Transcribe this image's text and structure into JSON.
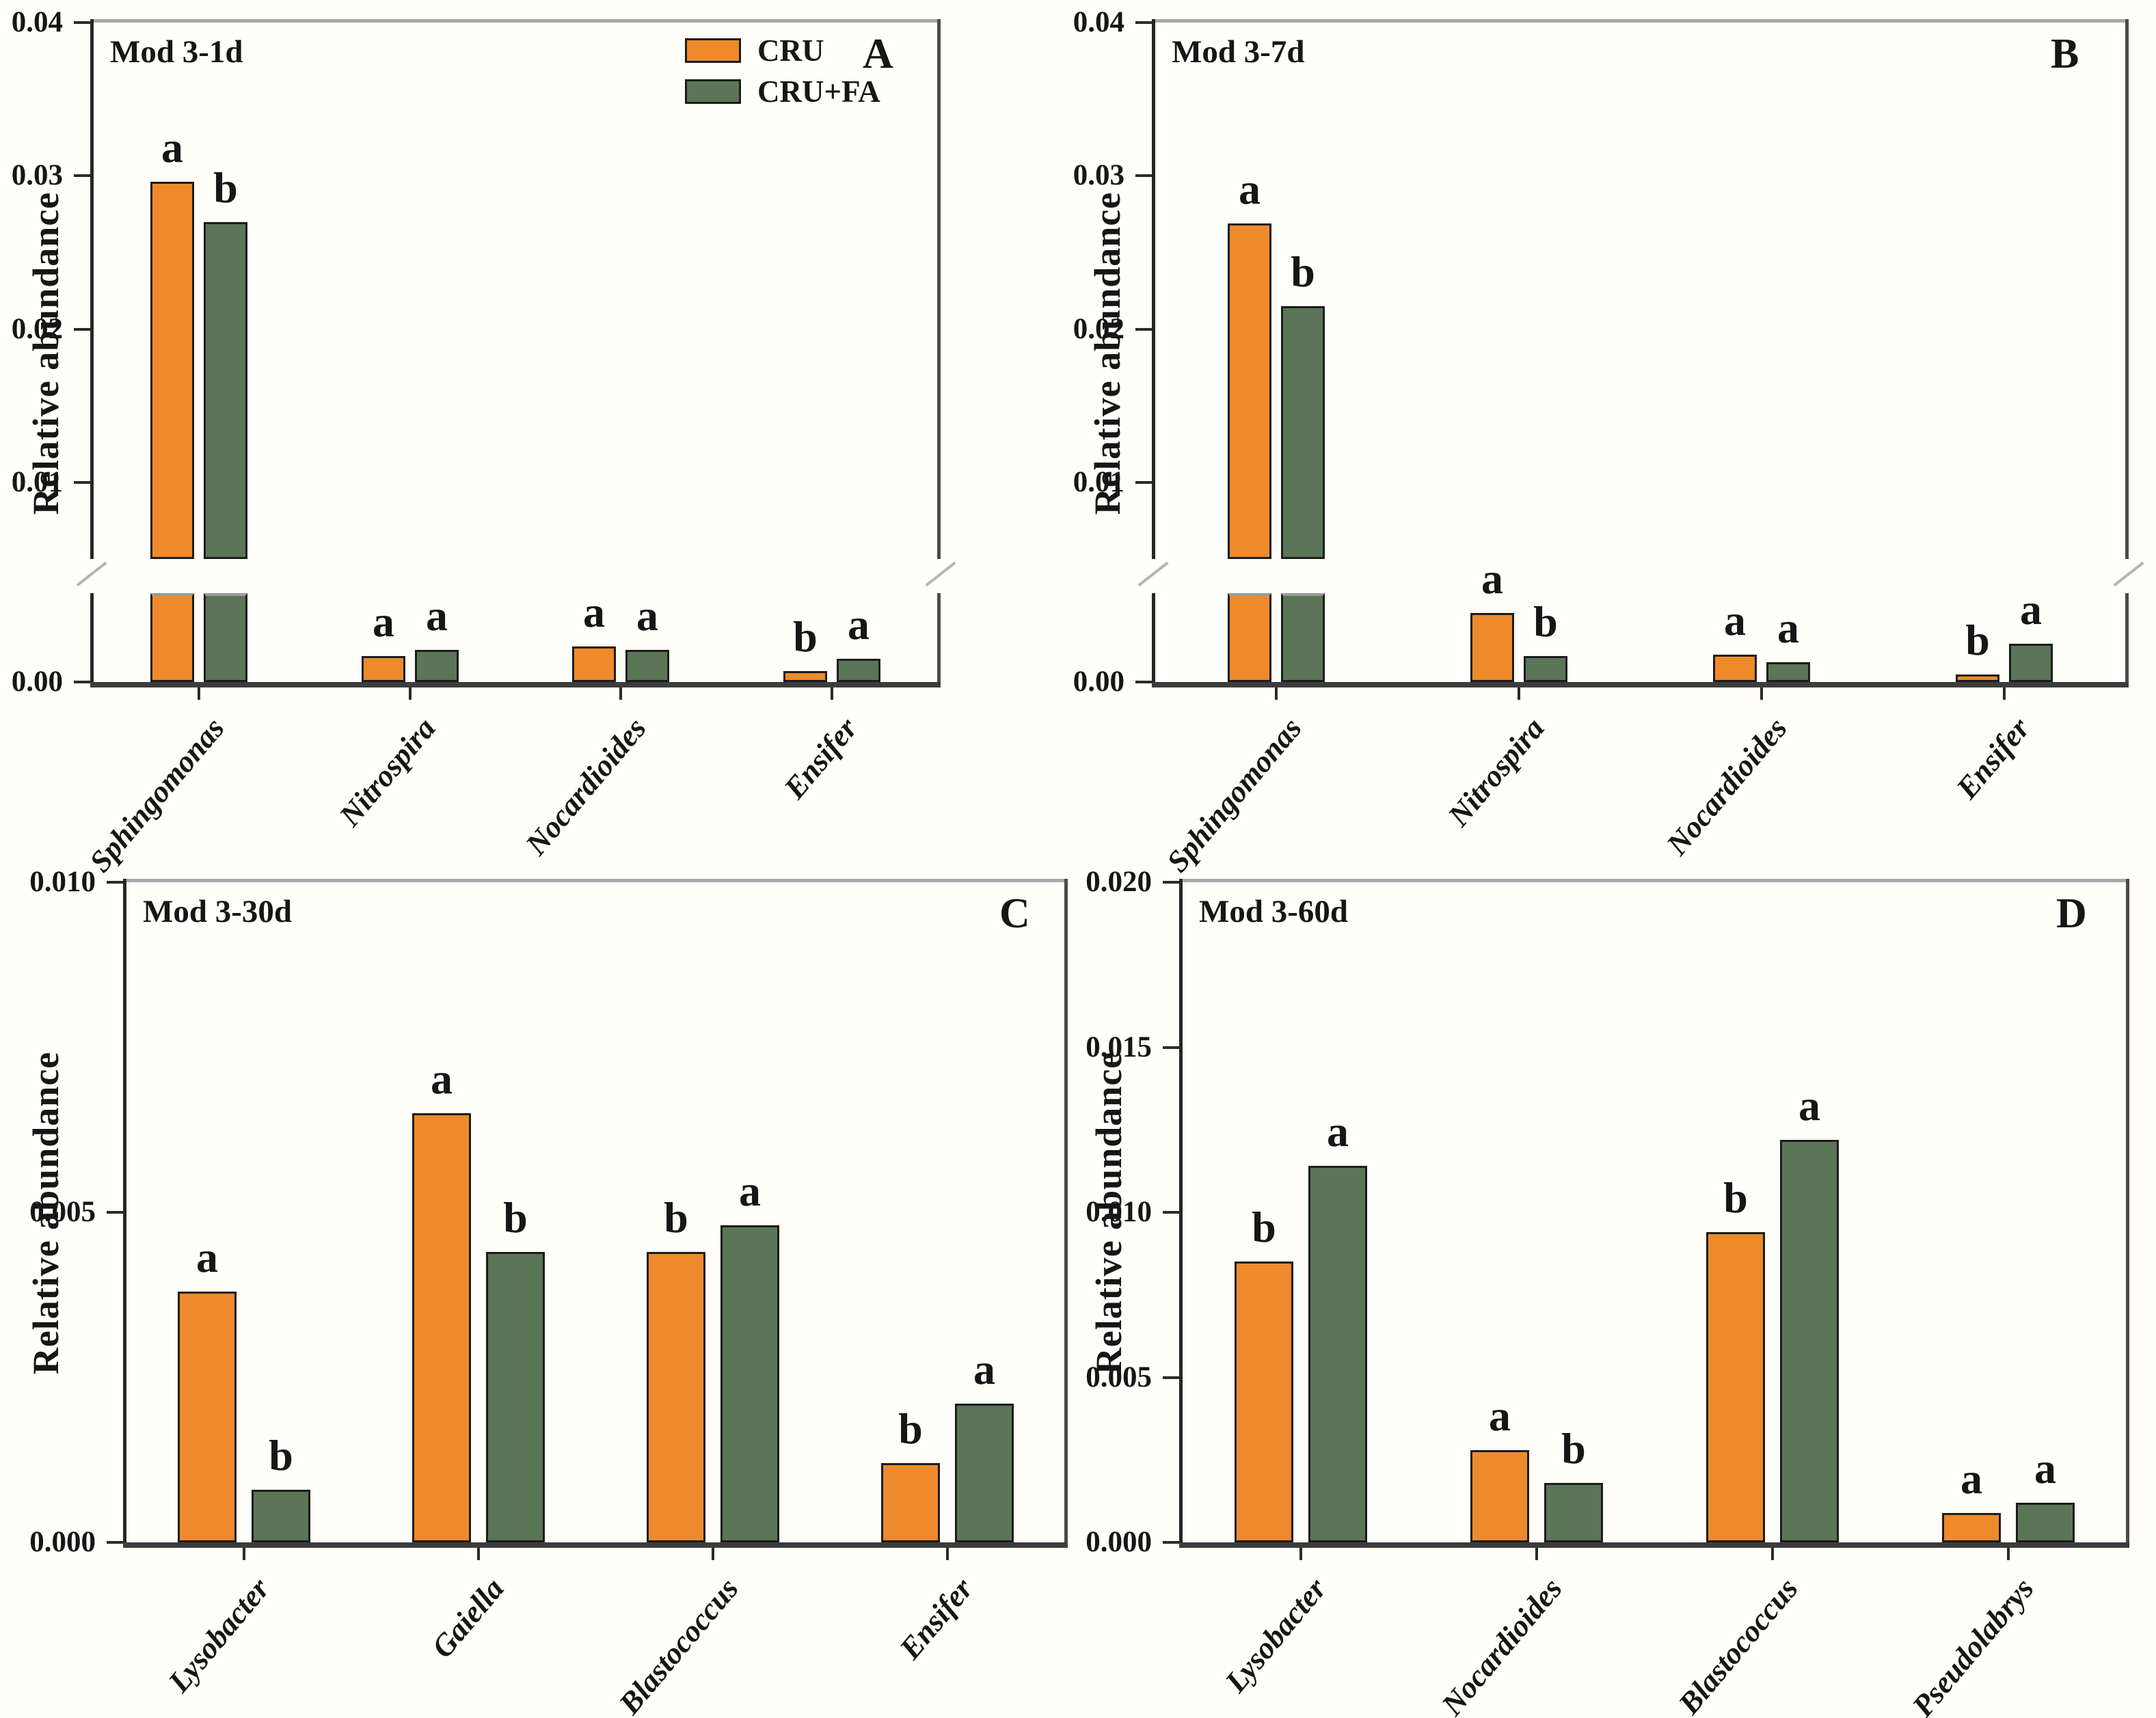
{
  "figure": {
    "y_axis_label": "Relative abundance",
    "legend": {
      "items": [
        {
          "label": "CRU",
          "color": "#EE8A2B"
        },
        {
          "label": "CRU+FA",
          "color": "#5B7557"
        }
      ]
    },
    "colors": {
      "cru": "#EE8A2B",
      "cru_fa": "#5B7557",
      "bar_border": "#1c1c1c",
      "axis": "#262626",
      "background": "#fffef8"
    }
  },
  "chart_data": [
    {
      "type": "bar",
      "panel_letter": "A",
      "title": "Mod 3-1d",
      "ylabel": "Relative abundance",
      "ylim": [
        0,
        0.04
      ],
      "broken_axis": true,
      "axis_break": {
        "upper_min": 0.005,
        "lower_max": 0.0058
      },
      "tick_values": [
        0.0,
        0.01,
        0.02,
        0.03,
        0.04
      ],
      "tick_labels": [
        "0.00",
        "0.01",
        "0.02",
        "0.03",
        "0.04"
      ],
      "categories": [
        "Sphingomonas",
        "Nitrospira",
        "Nocardioides",
        "Ensifer"
      ],
      "series": [
        {
          "name": "CRU",
          "values": [
            0.0296,
            0.0017,
            0.0023,
            0.0007
          ],
          "letters": [
            "a",
            "a",
            "a",
            "b"
          ]
        },
        {
          "name": "CRU+FA",
          "values": [
            0.027,
            0.0021,
            0.0021,
            0.0015
          ],
          "letters": [
            "b",
            "a",
            "a",
            "a"
          ]
        }
      ],
      "legend_visible": true
    },
    {
      "type": "bar",
      "panel_letter": "B",
      "title": "Mod 3-7d",
      "ylabel": "Relative abundance",
      "ylim": [
        0,
        0.04
      ],
      "broken_axis": true,
      "axis_break": {
        "upper_min": 0.005,
        "lower_max": 0.0058
      },
      "tick_values": [
        0.0,
        0.01,
        0.02,
        0.03,
        0.04
      ],
      "tick_labels": [
        "0.00",
        "0.01",
        "0.02",
        "0.03",
        "0.04"
      ],
      "categories": [
        "Sphingomonas",
        "Nitrospira",
        "Nocardioides",
        "Ensifer"
      ],
      "series": [
        {
          "name": "CRU",
          "values": [
            0.0269,
            0.0045,
            0.0018,
            0.0005
          ],
          "letters": [
            "a",
            "a",
            "a",
            "b"
          ]
        },
        {
          "name": "CRU+FA",
          "values": [
            0.0215,
            0.0017,
            0.0013,
            0.0025
          ],
          "letters": [
            "b",
            "b",
            "a",
            "a"
          ]
        }
      ],
      "legend_visible": false
    },
    {
      "type": "bar",
      "panel_letter": "C",
      "title": "Mod 3-30d",
      "ylabel": "Relative abundance",
      "ylim": [
        0,
        0.01
      ],
      "broken_axis": false,
      "tick_values": [
        0.0,
        0.005,
        0.01
      ],
      "tick_labels": [
        "0.000",
        "0.005",
        "0.010"
      ],
      "categories": [
        "Lysobacter",
        "Gaiella",
        "Blastococcus",
        "Ensifer"
      ],
      "series": [
        {
          "name": "CRU",
          "values": [
            0.0038,
            0.0065,
            0.0044,
            0.0012
          ],
          "letters": [
            "a",
            "a",
            "b",
            "b"
          ]
        },
        {
          "name": "CRU+FA",
          "values": [
            0.0008,
            0.0044,
            0.0048,
            0.0021
          ],
          "letters": [
            "b",
            "b",
            "a",
            "a"
          ]
        }
      ],
      "legend_visible": false
    },
    {
      "type": "bar",
      "panel_letter": "D",
      "title": "Mod 3-60d",
      "ylabel": "Relative abundance",
      "ylim": [
        0,
        0.02
      ],
      "broken_axis": false,
      "tick_values": [
        0.0,
        0.005,
        0.01,
        0.015,
        0.02
      ],
      "tick_labels": [
        "0.000",
        "0.005",
        "0.010",
        "0.015",
        "0.020"
      ],
      "categories": [
        "Lysobacter",
        "Nocardioides",
        "Blastococcus",
        "Pseudolabrys"
      ],
      "series": [
        {
          "name": "CRU",
          "values": [
            0.0085,
            0.0028,
            0.0094,
            0.0009
          ],
          "letters": [
            "b",
            "a",
            "b",
            "a"
          ]
        },
        {
          "name": "CRU+FA",
          "values": [
            0.0114,
            0.0018,
            0.0122,
            0.0012
          ],
          "letters": [
            "a",
            "b",
            "a",
            "a"
          ]
        }
      ],
      "legend_visible": false
    }
  ]
}
